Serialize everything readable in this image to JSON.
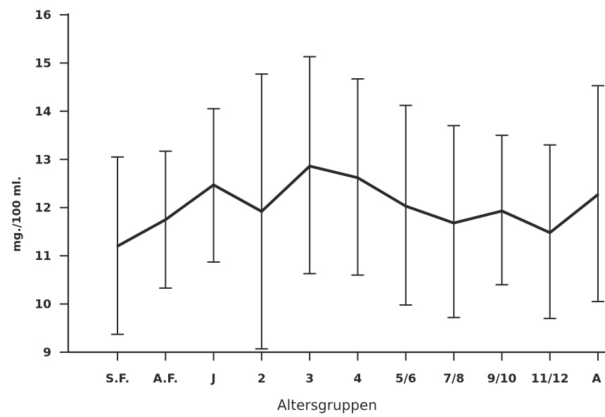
{
  "chart_data": {
    "type": "line",
    "title": "",
    "xlabel": "Altersgruppen",
    "ylabel": "mg./100 ml.",
    "ylim": [
      9,
      16
    ],
    "yticks": [
      9,
      10,
      11,
      12,
      13,
      14,
      15,
      16
    ],
    "ytick_labels": [
      "9",
      "10",
      "11",
      "12",
      "13",
      "14",
      "15",
      "16"
    ],
    "categories": [
      "S.F.",
      "A.F.",
      "J",
      "2",
      "3",
      "4",
      "5/6",
      "7/8",
      "9/10",
      "11/12",
      "A"
    ],
    "series": [
      {
        "values": [
          11.2,
          11.75,
          12.47,
          11.92,
          12.86,
          12.62,
          12.03,
          11.68,
          11.93,
          11.48,
          12.27
        ],
        "lower": [
          9.37,
          10.33,
          10.87,
          9.07,
          10.63,
          10.6,
          9.98,
          9.72,
          10.4,
          9.7,
          10.05
        ],
        "upper": [
          13.05,
          13.17,
          14.05,
          14.77,
          15.13,
          14.67,
          14.12,
          13.7,
          13.5,
          13.3,
          14.53
        ]
      }
    ],
    "grid": false
  }
}
